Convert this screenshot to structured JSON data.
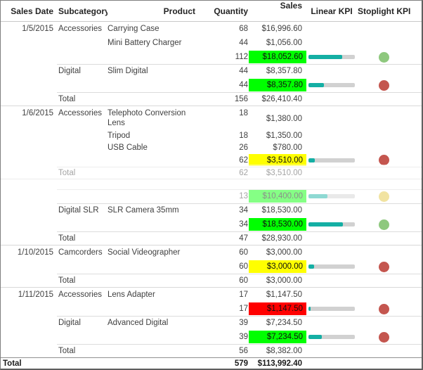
{
  "header": {
    "columns": [
      {
        "label": "Sales Date"
      },
      {
        "label": "Subcategory"
      },
      {
        "label": "Product"
      },
      {
        "label": "Quantity"
      },
      {
        "label": "Sales"
      },
      {
        "label": "Linear KPI"
      },
      {
        "label": "Stoplight KPI"
      }
    ]
  },
  "colors": {
    "teal": "#14AFA4",
    "bar_track": "#D1D1D1",
    "lime": "#00FF00",
    "yellow": "#FFFF00",
    "red": "#FF0000",
    "stop_green": "#8EC87E",
    "stop_red": "#C4564F",
    "stop_yellow": "#E2C53B"
  },
  "overlay": {
    "present": true
  },
  "rows": [
    {
      "type": "item",
      "h": 20,
      "date": "1/5/2015",
      "subcat": "Accessories",
      "product": "Carrying Case",
      "qty": "68",
      "sales": "$16,996.60"
    },
    {
      "type": "item",
      "h": 20,
      "product": "Mini Battery Charger",
      "qty": "44",
      "sales": "$1,056.00"
    },
    {
      "type": "subtotal",
      "h": 20,
      "qty": "112",
      "sales": "$18,052.60",
      "highlight": "lime",
      "bar": 72,
      "light": "green"
    },
    {
      "type": "item",
      "h": 20,
      "subcat": "Digital",
      "product": "Slim Digital",
      "qty": "44",
      "sales": "$8,357.80",
      "line": "sub"
    },
    {
      "type": "subtotal",
      "h": 20,
      "qty": "44",
      "sales": "$8,357.80",
      "highlight": "lime",
      "bar": 33,
      "light": "red"
    },
    {
      "type": "total",
      "h": 20,
      "label": "Total",
      "qty": "156",
      "sales": "$26,410.40",
      "line": "sub",
      "sep": true
    },
    {
      "type": "item",
      "h": 33,
      "wrap": true,
      "date": "1/6/2015",
      "subcat": "Accessories",
      "product": "Telephoto Conversion Lens",
      "qty": "18",
      "sales": "$1,380.00"
    },
    {
      "type": "item",
      "h": 17,
      "product": "Tripod",
      "qty": "18",
      "sales": "$1,350.00"
    },
    {
      "type": "item",
      "h": 17,
      "product": "USB Cable",
      "qty": "26",
      "sales": "$780.00"
    },
    {
      "type": "subtotal",
      "h": 19,
      "qty": "62",
      "sales": "$3,510.00",
      "highlight": "yellow",
      "bar": 14,
      "light": "red"
    },
    {
      "type": "total",
      "h": 18,
      "label": "Total",
      "qty": "62",
      "sales": "$3,510.00",
      "line": "sub",
      "sep": true
    },
    {
      "type": "hidden",
      "h": 14
    },
    {
      "type": "subtotal",
      "h": 20,
      "qty": "13",
      "sales": "$10,400.00",
      "highlight": "lime",
      "bar": 41,
      "light": "yellow",
      "line": "sub"
    },
    {
      "type": "item",
      "h": 20,
      "subcat": "Digital SLR",
      "product": "SLR Camera 35mm",
      "qty": "34",
      "sales": "$18,530.00",
      "line": "sub"
    },
    {
      "type": "subtotal",
      "h": 20,
      "qty": "34",
      "sales": "$18,530.00",
      "highlight": "lime",
      "bar": 74,
      "light": "green"
    },
    {
      "type": "total",
      "h": 20,
      "label": "Total",
      "qty": "47",
      "sales": "$28,930.00",
      "line": "sub",
      "sep": true
    },
    {
      "type": "item",
      "h": 20,
      "date": "1/10/2015",
      "subcat": "Camcorders",
      "product": "Social Videographer",
      "qty": "60",
      "sales": "$3,000.00"
    },
    {
      "type": "subtotal",
      "h": 20,
      "qty": "60",
      "sales": "$3,000.00",
      "highlight": "yellow",
      "bar": 12,
      "light": "red"
    },
    {
      "type": "total",
      "h": 20,
      "label": "Total",
      "qty": "60",
      "sales": "$3,000.00",
      "line": "sub",
      "sep": true
    },
    {
      "type": "item",
      "h": 20,
      "date": "1/11/2015",
      "subcat": "Accessories",
      "product": "Lens Adapter",
      "qty": "17",
      "sales": "$1,147.50"
    },
    {
      "type": "subtotal",
      "h": 20,
      "qty": "17",
      "sales": "$1,147.50",
      "highlight": "red",
      "bar": 5,
      "light": "red"
    },
    {
      "type": "item",
      "h": 20,
      "subcat": "Digital",
      "product": "Advanced Digital",
      "qty": "39",
      "sales": "$7,234.50",
      "line": "sub"
    },
    {
      "type": "subtotal",
      "h": 20,
      "qty": "39",
      "sales": "$7,234.50",
      "highlight": "lime",
      "bar": 29,
      "light": "red"
    },
    {
      "type": "total",
      "h": 20,
      "label": "Total",
      "qty": "56",
      "sales": "$8,382.00",
      "line": "sub",
      "sepDark": true
    },
    {
      "type": "grand",
      "h": 15,
      "label": "Total",
      "qty": "579",
      "sales": "$113,992.40"
    }
  ]
}
